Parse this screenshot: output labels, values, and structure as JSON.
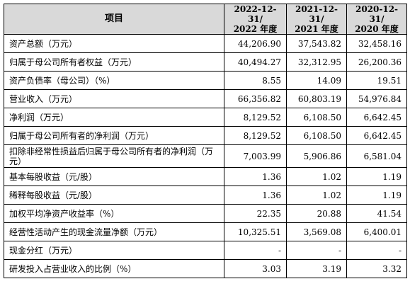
{
  "table": {
    "header": {
      "item": "项目",
      "col1_line1": "2022-12-31/",
      "col1_line2": "2022 年度",
      "col2_line1": "2021-12-31/",
      "col2_line2": "2021 年度",
      "col3_line1": "2020-12-31/",
      "col3_line2": "2020 年度"
    },
    "rows": [
      {
        "label": "资产总额（万元）",
        "v2022": "44,206.90",
        "v2021": "37,543.82",
        "v2020": "32,458.16"
      },
      {
        "label": "归属于母公司所有者权益（万元）",
        "v2022": "40,494.27",
        "v2021": "32,312.95",
        "v2020": "26,200.36"
      },
      {
        "label": "资产负债率（母公司）（%）",
        "v2022": "8.55",
        "v2021": "14.09",
        "v2020": "19.51"
      },
      {
        "label": "营业收入（万元）",
        "v2022": "66,356.82",
        "v2021": "60,803.19",
        "v2020": "54,976.84"
      },
      {
        "label": "净利润（万元）",
        "v2022": "8,129.52",
        "v2021": "6,108.50",
        "v2020": "6,642.45"
      },
      {
        "label": "归属于母公司所有者的净利润（万元）",
        "v2022": "8,129.52",
        "v2021": "6,108.50",
        "v2020": "6,642.45"
      },
      {
        "label": "扣除非经常性损益后归属于母公司所有者的净利润（万元）",
        "v2022": "7,003.99",
        "v2021": "5,906.86",
        "v2020": "6,581.04"
      },
      {
        "label": "基本每股收益（元/股）",
        "v2022": "1.36",
        "v2021": "1.02",
        "v2020": "1.19"
      },
      {
        "label": "稀释每股收益（元/股）",
        "v2022": "1.36",
        "v2021": "1.02",
        "v2020": "1.19"
      },
      {
        "label": "加权平均净资产收益率（%）",
        "v2022": "22.35",
        "v2021": "20.88",
        "v2020": "41.54"
      },
      {
        "label": "经营性活动产生的现金流量净额（万元）",
        "v2022": "10,325.51",
        "v2021": "3,569.08",
        "v2020": "6,400.01"
      },
      {
        "label": "现金分红（万元）",
        "v2022": "-",
        "v2021": "-",
        "v2020": "-"
      },
      {
        "label": "研发投入占营业收入的比例（%）",
        "v2022": "3.03",
        "v2021": "3.19",
        "v2020": "3.32"
      }
    ]
  }
}
